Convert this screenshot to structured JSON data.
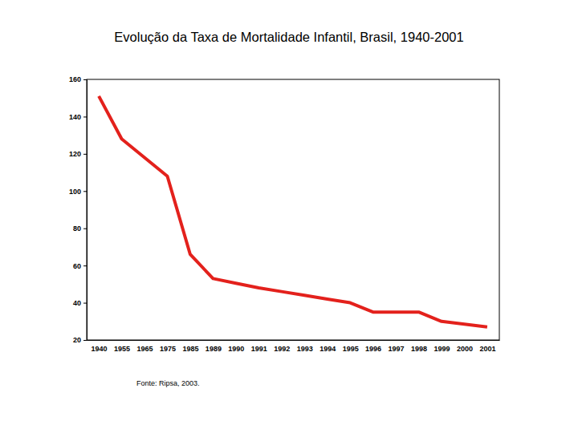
{
  "chart_data": {
    "type": "line",
    "title": "Evolução da Taxa de Mortalidade Infantil, Brasil, 1940-2001",
    "source": "Fonte: Ripsa, 2003.",
    "categories": [
      "1940",
      "1955",
      "1965",
      "1975",
      "1985",
      "1989",
      "1990",
      "1991",
      "1992",
      "1993",
      "1994",
      "1995",
      "1996",
      "1997",
      "1998",
      "1999",
      "2000",
      "2001"
    ],
    "values": [
      151,
      128,
      118,
      108,
      66,
      53,
      50.5,
      48,
      46,
      44,
      42,
      40,
      35,
      35,
      35,
      30,
      28.5,
      27
    ],
    "color": "#e3211c",
    "ylim": [
      20,
      160
    ],
    "yticks": [
      20,
      40,
      60,
      80,
      100,
      120,
      140,
      160
    ],
    "grid": false
  }
}
